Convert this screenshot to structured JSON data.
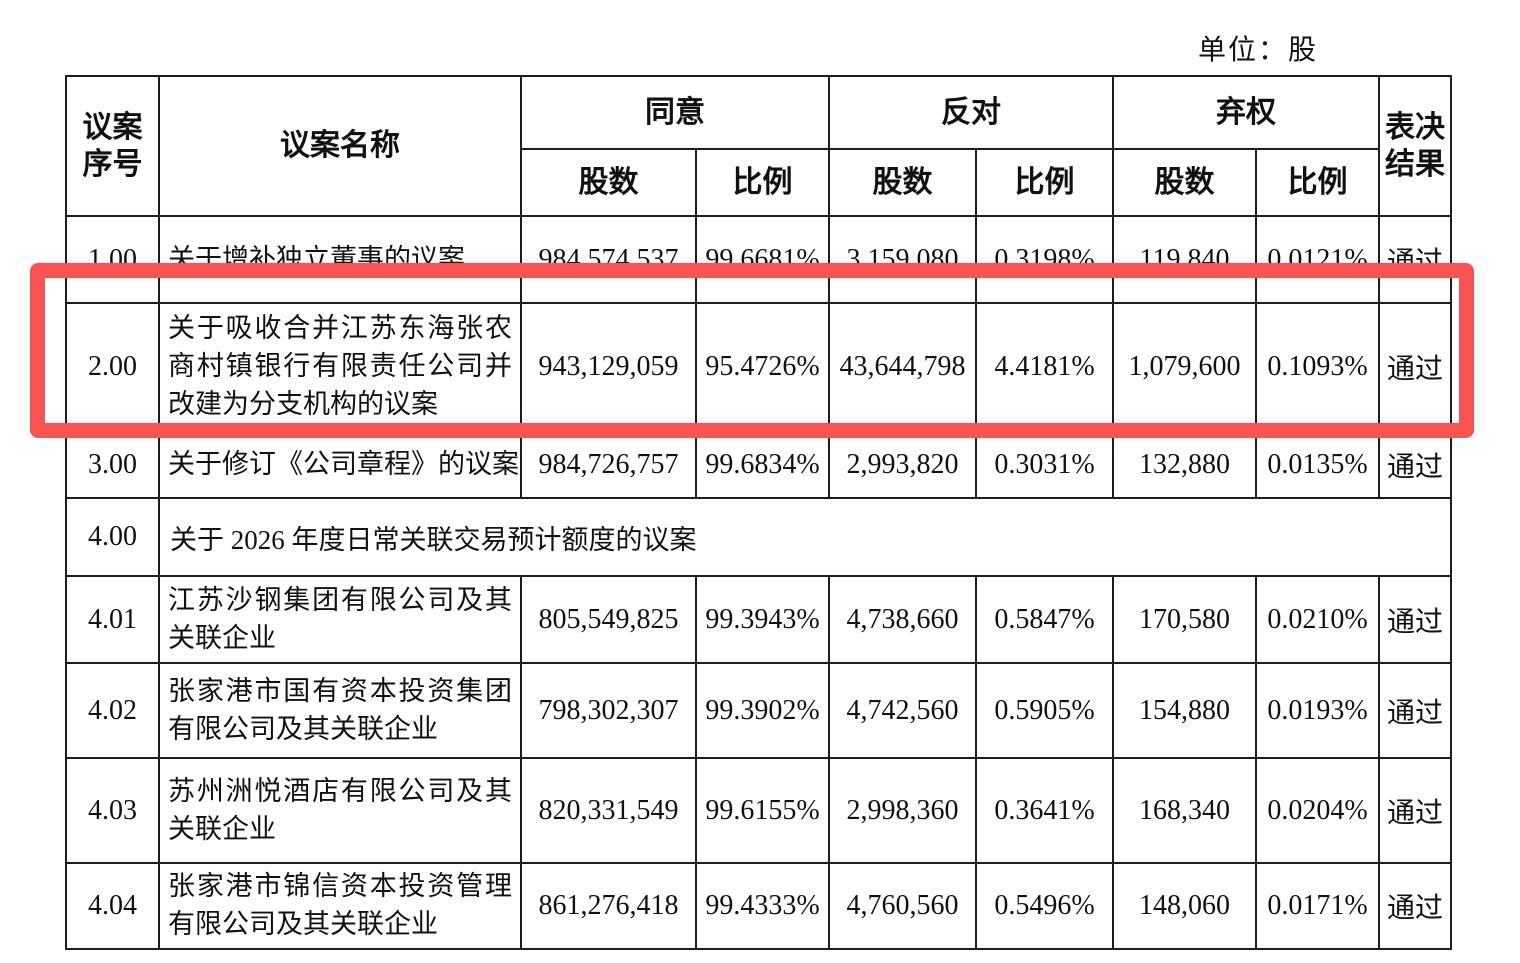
{
  "unit_label": "单位：股",
  "highlight": {
    "color": "#F75353",
    "purpose": "red annotation box around proposal 2.00 row"
  },
  "table": {
    "header": {
      "col_proposal_no": "议案\n序号",
      "col_proposal_name": "议案名称",
      "group_agree": "同意",
      "group_against": "反对",
      "group_abstain": "弃权",
      "col_result": "表决\n结果",
      "sub_shares": "股数",
      "sub_ratio": "比例"
    },
    "rows": [
      {
        "no": "1.00",
        "name_lines": [
          "关于增补独立董事的议案"
        ],
        "agree_shares": "984,574,537",
        "agree_ratio": "99.6681%",
        "against_shares": "3,159,080",
        "against_ratio": "0.3198%",
        "abstain_shares": "119,840",
        "abstain_ratio": "0.0121%",
        "result": "通过",
        "spanning": false
      },
      {
        "no": "2.00",
        "name_lines": [
          "关于吸收合并江苏东海张农",
          "商村镇银行有限责任公司并",
          "改建为分支机构的议案"
        ],
        "agree_shares": "943,129,059",
        "agree_ratio": "95.4726%",
        "against_shares": "43,644,798",
        "against_ratio": "4.4181%",
        "abstain_shares": "1,079,600",
        "abstain_ratio": "0.1093%",
        "result": "通过",
        "spanning": false
      },
      {
        "no": "3.00",
        "name_lines": [
          "关于修订《公司章程》的议案"
        ],
        "agree_shares": "984,726,757",
        "agree_ratio": "99.6834%",
        "against_shares": "2,993,820",
        "against_ratio": "0.3031%",
        "abstain_shares": "132,880",
        "abstain_ratio": "0.0135%",
        "result": "通过",
        "spanning": false
      },
      {
        "no": "4.00",
        "name_lines": [
          "关于 2026 年度日常关联交易预计额度的议案"
        ],
        "spanning": true
      },
      {
        "no": "4.01",
        "name_lines": [
          "江苏沙钢集团有限公司及其",
          "关联企业"
        ],
        "agree_shares": "805,549,825",
        "agree_ratio": "99.3943%",
        "against_shares": "4,738,660",
        "against_ratio": "0.5847%",
        "abstain_shares": "170,580",
        "abstain_ratio": "0.0210%",
        "result": "通过",
        "spanning": false
      },
      {
        "no": "4.02",
        "name_lines": [
          "张家港市国有资本投资集团",
          "有限公司及其关联企业"
        ],
        "agree_shares": "798,302,307",
        "agree_ratio": "99.3902%",
        "against_shares": "4,742,560",
        "against_ratio": "0.5905%",
        "abstain_shares": "154,880",
        "abstain_ratio": "0.0193%",
        "result": "通过",
        "spanning": false
      },
      {
        "no": "4.03",
        "name_lines": [
          "苏州洲悦酒店有限公司及其",
          "关联企业"
        ],
        "agree_shares": "820,331,549",
        "agree_ratio": "99.6155%",
        "against_shares": "2,998,360",
        "against_ratio": "0.3641%",
        "abstain_shares": "168,340",
        "abstain_ratio": "0.0204%",
        "result": "通过",
        "spanning": false
      },
      {
        "no": "4.04",
        "name_lines": [
          "张家港市锦信资本投资管理",
          "有限公司及其关联企业"
        ],
        "agree_shares": "861,276,418",
        "agree_ratio": "99.4333%",
        "against_shares": "4,760,560",
        "against_ratio": "0.5496%",
        "abstain_shares": "148,060",
        "abstain_ratio": "0.0171%",
        "result": "通过",
        "spanning": false
      }
    ]
  }
}
